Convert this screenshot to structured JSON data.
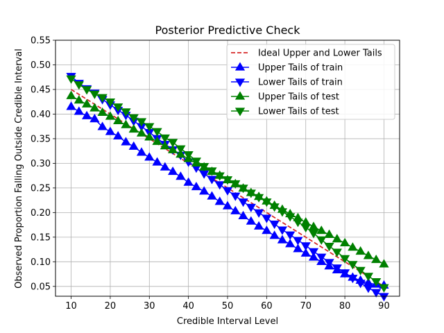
{
  "chart_data": {
    "type": "line",
    "title": "Posterior Predictive Check",
    "xlabel": "Credible Interval Level",
    "ylabel": "Observed Proportion Falling Outside Credible Interval",
    "xlim": [
      6,
      94
    ],
    "ylim": [
      0.03,
      0.55
    ],
    "x_ticks": [
      10,
      20,
      30,
      40,
      50,
      60,
      70,
      80,
      90
    ],
    "y_ticks": [
      0.05,
      0.1,
      0.15,
      0.2,
      0.25,
      0.3,
      0.35,
      0.4,
      0.45,
      0.5,
      0.55
    ],
    "x_tick_labels": [
      "10",
      "20",
      "30",
      "40",
      "50",
      "60",
      "70",
      "80",
      "90"
    ],
    "y_tick_labels": [
      "0.05",
      "0.10",
      "0.15",
      "0.20",
      "0.25",
      "0.30",
      "0.35",
      "0.40",
      "0.45",
      "0.50",
      "0.55"
    ],
    "grid": true,
    "legend_position": "top-right",
    "x": [
      10,
      12,
      14,
      16,
      18,
      20,
      22,
      24,
      26,
      28,
      30,
      32,
      34,
      36,
      38,
      40,
      42,
      44,
      46,
      48,
      50,
      52,
      54,
      56,
      58,
      60,
      62,
      64,
      66,
      68,
      70,
      72,
      74,
      76,
      78,
      80,
      82,
      84,
      86,
      88,
      90
    ],
    "series": [
      {
        "name": "Ideal Upper and Lower Tails",
        "color": "#d62728",
        "style": "dashed",
        "marker": "none",
        "values": [
          0.45,
          0.44,
          0.43,
          0.42,
          0.41,
          0.4,
          0.39,
          0.38,
          0.37,
          0.36,
          0.35,
          0.34,
          0.33,
          0.32,
          0.31,
          0.3,
          0.29,
          0.28,
          0.27,
          0.26,
          0.25,
          0.24,
          0.23,
          0.22,
          0.21,
          0.2,
          0.19,
          0.18,
          0.17,
          0.16,
          0.15,
          0.14,
          0.13,
          0.12,
          0.11,
          0.1,
          0.09,
          0.08,
          0.07,
          0.06,
          0.05
        ]
      },
      {
        "name": "Upper Tails of train",
        "color": "#0000ff",
        "style": "solid",
        "marker": "triangle-up",
        "values": [
          0.415,
          0.405,
          0.396,
          0.39,
          0.374,
          0.364,
          0.355,
          0.343,
          0.334,
          0.322,
          0.312,
          0.302,
          0.292,
          0.283,
          0.273,
          0.261,
          0.252,
          0.243,
          0.233,
          0.222,
          0.213,
          0.203,
          0.193,
          0.182,
          0.172,
          0.163,
          0.153,
          0.144,
          0.136,
          0.126,
          0.117,
          0.109,
          0.1,
          0.091,
          0.083,
          0.075,
          0.068,
          0.062,
          0.057,
          0.054,
          0.052
        ]
      },
      {
        "name": "Lower Tails of train",
        "color": "#0000ff",
        "style": "solid",
        "marker": "triangle-down",
        "values": [
          0.477,
          0.463,
          0.452,
          0.443,
          0.43,
          0.419,
          0.408,
          0.398,
          0.386,
          0.375,
          0.363,
          0.351,
          0.339,
          0.328,
          0.317,
          0.303,
          0.291,
          0.279,
          0.268,
          0.257,
          0.245,
          0.234,
          0.222,
          0.211,
          0.2,
          0.189,
          0.177,
          0.165,
          0.155,
          0.144,
          0.133,
          0.121,
          0.11,
          0.099,
          0.088,
          0.078,
          0.067,
          0.057,
          0.047,
          0.038,
          0.03
        ]
      },
      {
        "name": "Upper Tails of test",
        "color": "#008000",
        "style": "solid",
        "marker": "triangle-up",
        "values": [
          0.437,
          0.428,
          0.42,
          0.412,
          0.403,
          0.395,
          0.386,
          0.378,
          0.369,
          0.361,
          0.353,
          0.344,
          0.335,
          0.327,
          0.318,
          0.309,
          0.3,
          0.292,
          0.283,
          0.275,
          0.266,
          0.258,
          0.249,
          0.24,
          0.232,
          0.223,
          0.214,
          0.206,
          0.197,
          0.189,
          0.18,
          0.171,
          0.163,
          0.155,
          0.146,
          0.138,
          0.129,
          0.121,
          0.112,
          0.104,
          0.095
        ]
      },
      {
        "name": "Lower Tails of test",
        "color": "#008000",
        "style": "solid",
        "marker": "triangle-down",
        "values": [
          0.472,
          0.46,
          0.45,
          0.441,
          0.434,
          0.425,
          0.415,
          0.405,
          0.393,
          0.385,
          0.375,
          0.365,
          0.352,
          0.343,
          0.33,
          0.318,
          0.305,
          0.294,
          0.285,
          0.275,
          0.267,
          0.259,
          0.25,
          0.24,
          0.231,
          0.222,
          0.212,
          0.202,
          0.192,
          0.181,
          0.17,
          0.158,
          0.145,
          0.132,
          0.12,
          0.107,
          0.095,
          0.083,
          0.071,
          0.06,
          0.048
        ]
      }
    ]
  }
}
